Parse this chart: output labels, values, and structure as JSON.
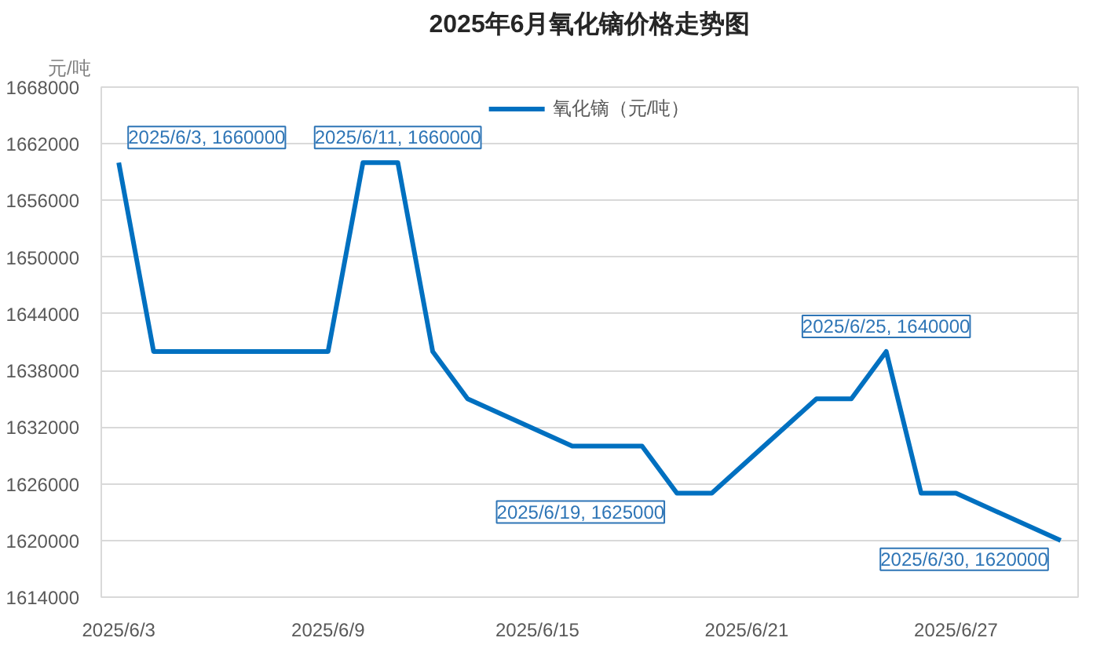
{
  "chart_data": {
    "type": "line",
    "title": "2025年6月氧化镝价格走势图",
    "ylabel": "元/吨",
    "x": [
      "2025-06-03",
      "2025-06-04",
      "2025-06-05",
      "2025-06-06",
      "2025-06-09",
      "2025-06-10",
      "2025-06-11",
      "2025-06-12",
      "2025-06-13",
      "2025-06-16",
      "2025-06-17",
      "2025-06-18",
      "2025-06-19",
      "2025-06-20",
      "2025-06-23",
      "2025-06-24",
      "2025-06-25",
      "2025-06-26",
      "2025-06-27",
      "2025-06-30"
    ],
    "series": [
      {
        "name": "氧化镝（元/吨）",
        "color": "#0070c0",
        "values": [
          1660000,
          1640000,
          1640000,
          1640000,
          1640000,
          1660000,
          1660000,
          1640000,
          1635000,
          1630000,
          1630000,
          1630000,
          1625000,
          1625000,
          1635000,
          1635000,
          1640000,
          1625000,
          1625000,
          1620000
        ],
        "value_labels": [
          "2025/6/3, 1660000",
          null,
          null,
          null,
          null,
          null,
          "2025/6/11, 1660000",
          null,
          null,
          null,
          null,
          null,
          "2025/6/19, 1625000",
          null,
          null,
          null,
          "2025/6/25, 1640000",
          null,
          null,
          "2025/6/30, 1620000"
        ]
      }
    ],
    "xlim": [
      "2025-06-02T12:00",
      "2025-06-30T12:00"
    ],
    "xticks": [
      {
        "value": "2025-06-03",
        "label": "2025/6/3"
      },
      {
        "value": "2025-06-09",
        "label": "2025/6/9"
      },
      {
        "value": "2025-06-15",
        "label": "2025/6/15"
      },
      {
        "value": "2025-06-21",
        "label": "2025/6/21"
      },
      {
        "value": "2025-06-27",
        "label": "2025/6/27"
      }
    ],
    "ylim": [
      1614000,
      1668000
    ],
    "yticks": [
      1614000,
      1620000,
      1626000,
      1632000,
      1638000,
      1644000,
      1650000,
      1656000,
      1662000,
      1668000
    ],
    "grid": "y",
    "legend": "top"
  }
}
